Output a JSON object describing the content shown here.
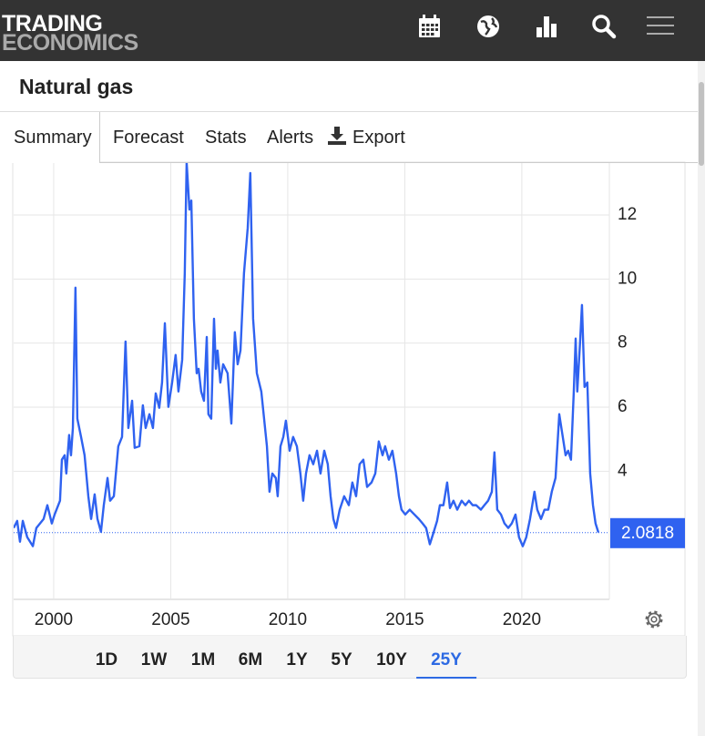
{
  "header": {
    "logo": [
      "TRADING",
      "ECONOMICS"
    ]
  },
  "title": "Natural gas",
  "tabs": [
    "Summary",
    "Forecast",
    "Stats",
    "Alerts",
    "Export"
  ],
  "ranges": [
    "1D",
    "1W",
    "1M",
    "6M",
    "1Y",
    "5Y",
    "10Y",
    "25Y"
  ],
  "active_range": 7,
  "chart_data": {
    "type": "line",
    "color": "#2f62f0",
    "xlim": [
      1998.29,
      2023.74
    ],
    "ylim": [
      0,
      13.65
    ],
    "xticks": [
      2000,
      2005,
      2010,
      2015,
      2020
    ],
    "yticks": [
      4,
      6,
      8,
      10,
      12
    ],
    "grid": true,
    "last_value": 2.0818,
    "x": [
      1998.29,
      1998.44,
      1998.56,
      1998.68,
      1998.87,
      1999.11,
      1999.26,
      1999.57,
      1999.73,
      1999.92,
      2000.04,
      2000.27,
      2000.35,
      2000.47,
      2000.54,
      2000.66,
      2000.74,
      2000.82,
      2000.93,
      2001.01,
      2001.17,
      2001.32,
      2001.48,
      2001.6,
      2001.75,
      2001.87,
      2002.02,
      2002.14,
      2002.3,
      2002.41,
      2002.57,
      2002.76,
      2002.92,
      2003.07,
      2003.19,
      2003.35,
      2003.46,
      2003.66,
      2003.81,
      2003.93,
      2004.09,
      2004.24,
      2004.36,
      2004.51,
      2004.63,
      2004.75,
      2004.9,
      2005.06,
      2005.21,
      2005.33,
      2005.49,
      2005.6,
      2005.68,
      2005.8,
      2005.88,
      2005.99,
      2006.11,
      2006.19,
      2006.3,
      2006.42,
      2006.54,
      2006.61,
      2006.73,
      2006.85,
      2006.93,
      2007.0,
      2007.12,
      2007.24,
      2007.43,
      2007.59,
      2007.74,
      2007.86,
      2007.98,
      2008.13,
      2008.29,
      2008.4,
      2008.52,
      2008.68,
      2008.87,
      2009.11,
      2009.22,
      2009.34,
      2009.49,
      2009.57,
      2009.69,
      2009.81,
      2009.92,
      2010.08,
      2010.23,
      2010.39,
      2010.54,
      2010.66,
      2010.78,
      2010.93,
      2011.09,
      2011.25,
      2011.4,
      2011.56,
      2011.71,
      2011.83,
      2011.95,
      2012.06,
      2012.22,
      2012.41,
      2012.61,
      2012.76,
      2012.92,
      2013.07,
      2013.23,
      2013.39,
      2013.58,
      2013.74,
      2013.89,
      2014.05,
      2014.16,
      2014.32,
      2014.47,
      2014.63,
      2014.75,
      2014.86,
      2015.02,
      2015.21,
      2015.41,
      2015.6,
      2015.76,
      2015.91,
      2016.07,
      2016.23,
      2016.38,
      2016.5,
      2016.65,
      2016.81,
      2016.93,
      2017.08,
      2017.24,
      2017.43,
      2017.59,
      2017.74,
      2017.9,
      2018.05,
      2018.25,
      2018.4,
      2018.56,
      2018.72,
      2018.83,
      2018.95,
      2019.11,
      2019.26,
      2019.42,
      2019.57,
      2019.73,
      2019.88,
      2020.04,
      2020.19,
      2020.35,
      2020.54,
      2020.66,
      2020.82,
      2020.97,
      2021.13,
      2021.28,
      2021.44,
      2021.6,
      2021.75,
      2021.87,
      2021.98,
      2022.1,
      2022.22,
      2022.3,
      2022.37,
      2022.49,
      2022.57,
      2022.68,
      2022.8,
      2022.92,
      2023.04,
      2023.15,
      2023.27
    ],
    "values": [
      2.23,
      2.45,
      1.8,
      2.45,
      1.94,
      1.66,
      2.23,
      2.51,
      2.94,
      2.37,
      2.65,
      3.08,
      4.36,
      4.5,
      3.93,
      5.13,
      4.5,
      5.35,
      9.73,
      5.64,
      5.07,
      4.5,
      3.22,
      2.51,
      3.28,
      2.51,
      2.11,
      2.94,
      3.79,
      3.08,
      3.22,
      4.78,
      5.07,
      8.05,
      5.35,
      6.2,
      4.73,
      4.78,
      6.06,
      5.35,
      5.78,
      5.35,
      6.43,
      5.98,
      6.77,
      8.62,
      6.01,
      6.77,
      7.63,
      6.49,
      7.48,
      10.18,
      13.65,
      12.17,
      12.45,
      8.76,
      7.06,
      7.2,
      6.49,
      6.2,
      8.19,
      5.78,
      5.64,
      8.76,
      7.2,
      7.77,
      6.77,
      7.34,
      7.06,
      5.49,
      8.34,
      7.34,
      7.77,
      10.18,
      11.6,
      13.31,
      8.76,
      7.06,
      6.49,
      4.78,
      3.36,
      3.93,
      3.79,
      3.22,
      4.78,
      5.07,
      5.58,
      4.64,
      5.07,
      4.78,
      3.93,
      3.08,
      3.93,
      4.5,
      4.22,
      4.64,
      3.93,
      4.64,
      4.22,
      3.22,
      2.51,
      2.23,
      2.8,
      3.22,
      2.94,
      3.65,
      3.22,
      4.22,
      4.36,
      3.51,
      3.65,
      3.93,
      4.93,
      4.5,
      4.78,
      4.36,
      4.64,
      3.93,
      3.22,
      2.8,
      2.65,
      2.8,
      2.65,
      2.51,
      2.37,
      2.23,
      1.72,
      2.09,
      2.45,
      2.94,
      2.94,
      3.65,
      2.85,
      3.08,
      2.8,
      3.08,
      2.94,
      3.08,
      2.94,
      2.94,
      2.8,
      2.94,
      3.08,
      3.36,
      4.59,
      2.8,
      2.65,
      2.37,
      2.23,
      2.37,
      2.65,
      1.94,
      1.66,
      1.94,
      2.51,
      3.36,
      2.8,
      2.51,
      2.8,
      2.8,
      3.36,
      3.79,
      5.78,
      5.07,
      4.5,
      4.64,
      4.36,
      6.49,
      8.14,
      6.49,
      8.05,
      9.19,
      6.63,
      6.77,
      3.93,
      2.94,
      2.37,
      2.09
    ]
  }
}
